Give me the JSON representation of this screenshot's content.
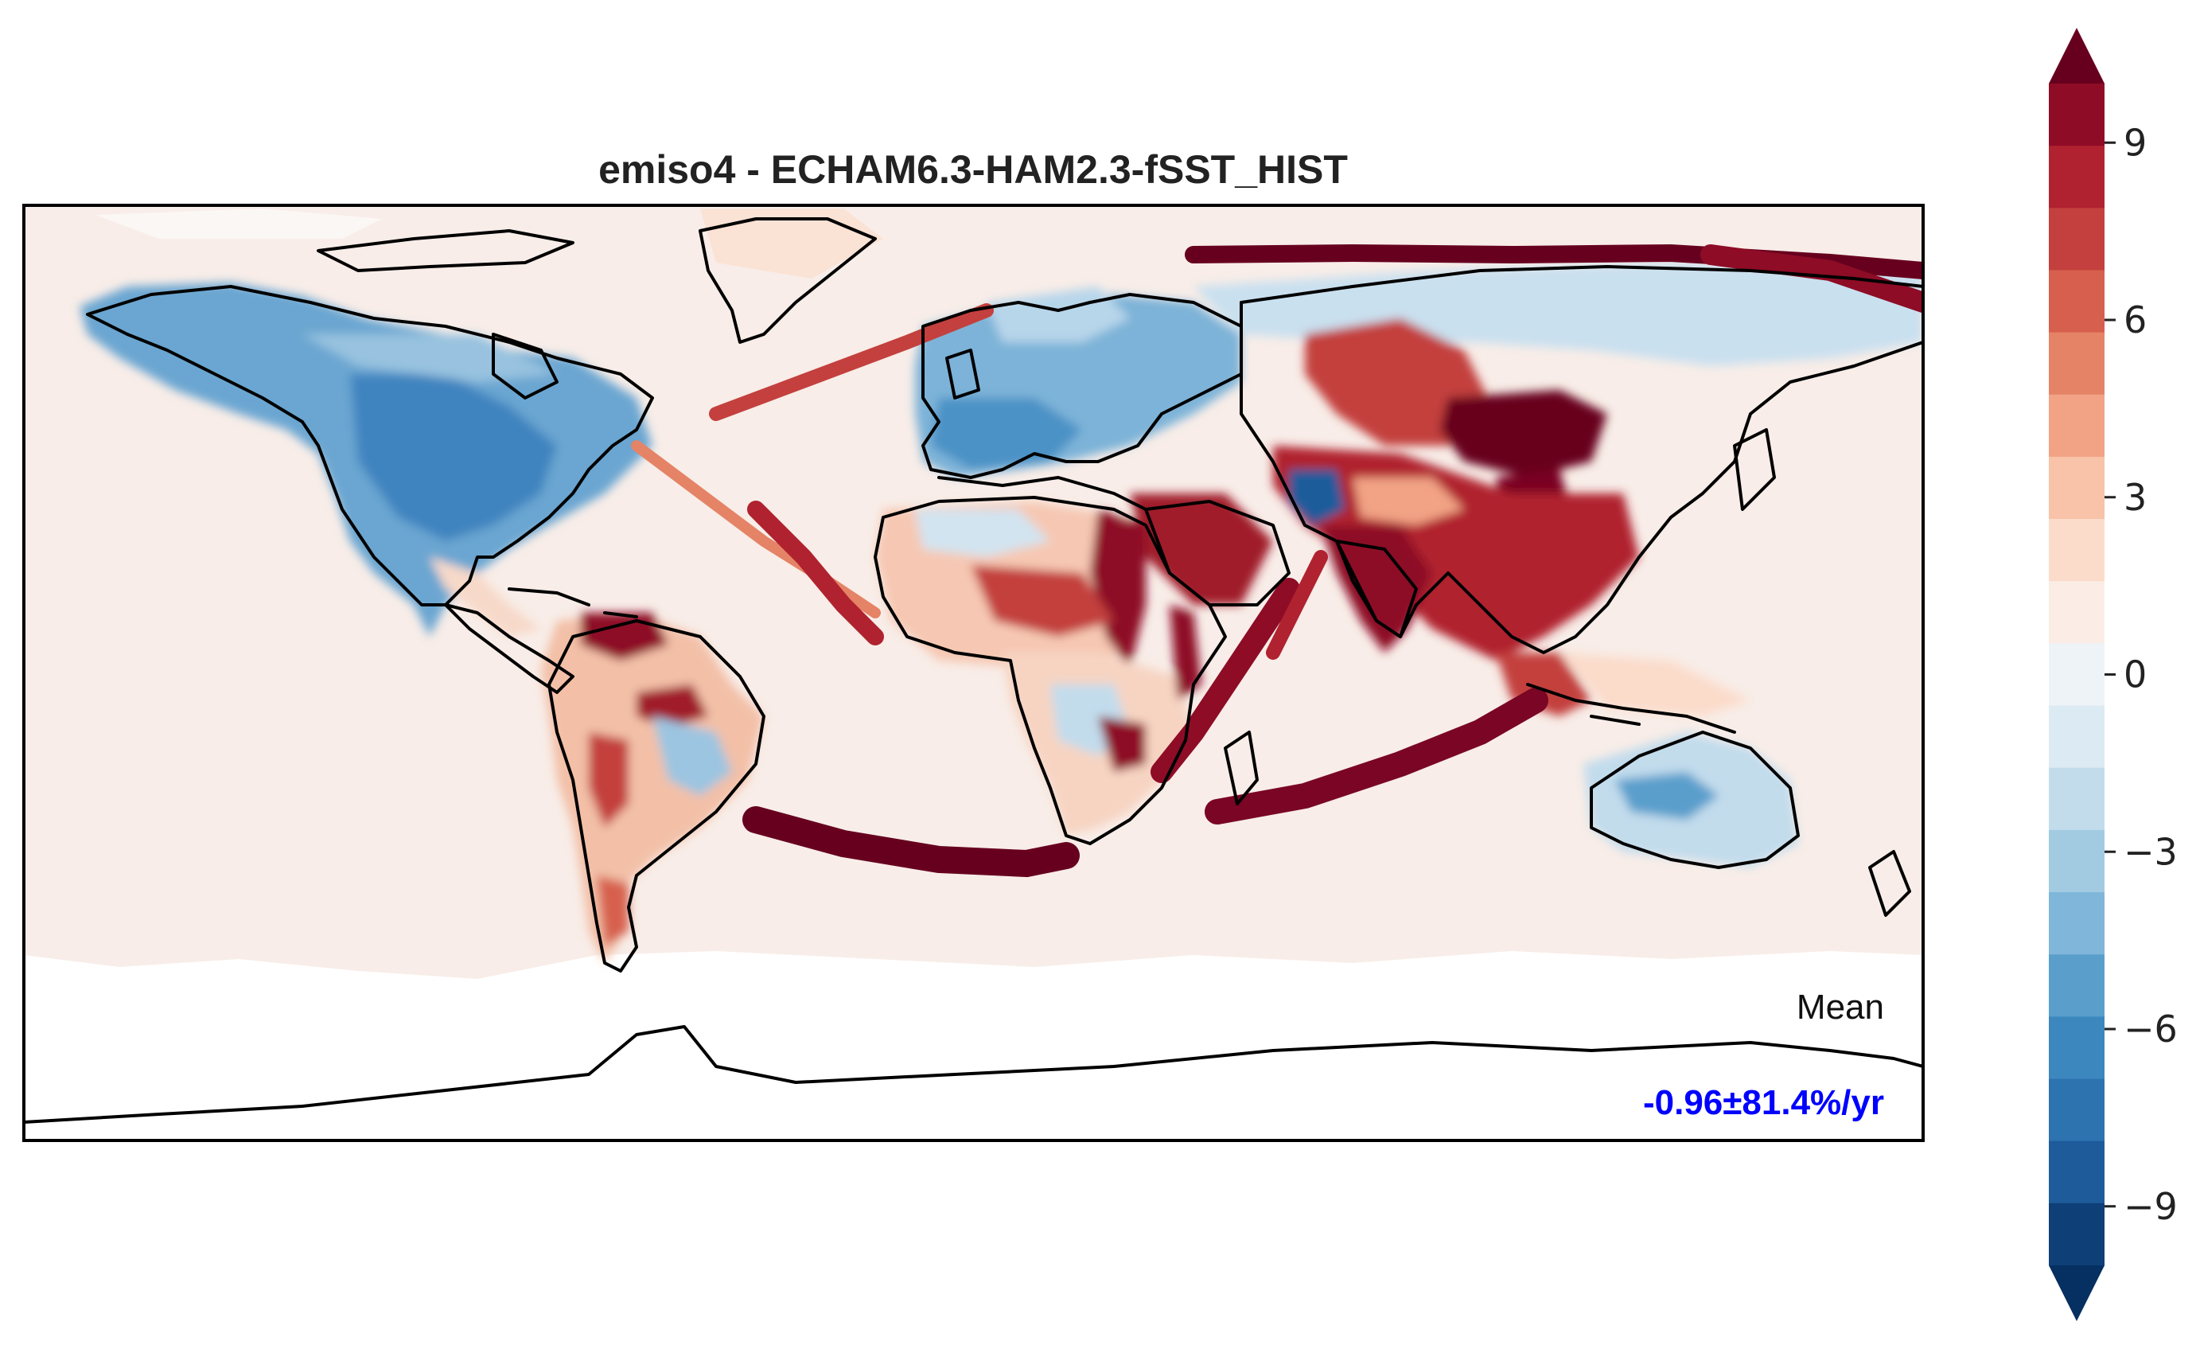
{
  "chart_data": {
    "type": "heatmap",
    "title": "emiso4 - ECHAM6.3-HAM2.3-fSST_HIST",
    "projection": "PlateCarree global map with coastlines",
    "colorbar": {
      "orientation": "vertical",
      "position": "right",
      "extend": "both",
      "range": [
        -10,
        10
      ],
      "step": 1,
      "ticks": [
        9,
        6,
        3,
        0,
        -3,
        -6,
        -9
      ],
      "tick_labels": [
        "9",
        "6",
        "3",
        "0",
        "−3",
        "−6",
        "−9"
      ],
      "colormap": "RdBu_r",
      "levels_colors": [
        "#053061",
        "#0f3f77",
        "#1e5b9b",
        "#2c73b0",
        "#3d87bf",
        "#5a9fcc",
        "#7fb6da",
        "#a2cbe2",
        "#c2dcec",
        "#dbeaf3",
        "#edf3f7",
        "#fbede6",
        "#fbdccb",
        "#f8c3a8",
        "#f2a385",
        "#e58366",
        "#d6604d",
        "#c3403e",
        "#b0222f",
        "#8e0c26",
        "#67001f"
      ]
    },
    "annotation": {
      "label": "Mean",
      "value": "-0.96±81.4%/yr",
      "value_color": "#0000ff"
    },
    "regions": [
      {
        "name": "background ocean",
        "sign": "slightly positive",
        "approx_value": 0.5
      },
      {
        "name": "North America",
        "sign": "negative",
        "approx_value": -5
      },
      {
        "name": "Europe",
        "sign": "negative",
        "approx_value": -4
      },
      {
        "name": "Arctic coast of Siberia",
        "sign": "positive",
        "approx_value": 10
      },
      {
        "name": "East Asia / China",
        "sign": "positive",
        "approx_value": 10
      },
      {
        "name": "India",
        "sign": "positive",
        "approx_value": 8
      },
      {
        "name": "Arabian peninsula",
        "sign": "positive",
        "approx_value": 7
      },
      {
        "name": "Shipping lanes (Atlantic, Indian Ocean)",
        "sign": "positive",
        "approx_value": 10
      },
      {
        "name": "Australia interior",
        "sign": "negative",
        "approx_value": -4
      },
      {
        "name": "Southern Ocean near Antarctica",
        "sign": "near zero",
        "approx_value": 0
      }
    ]
  }
}
